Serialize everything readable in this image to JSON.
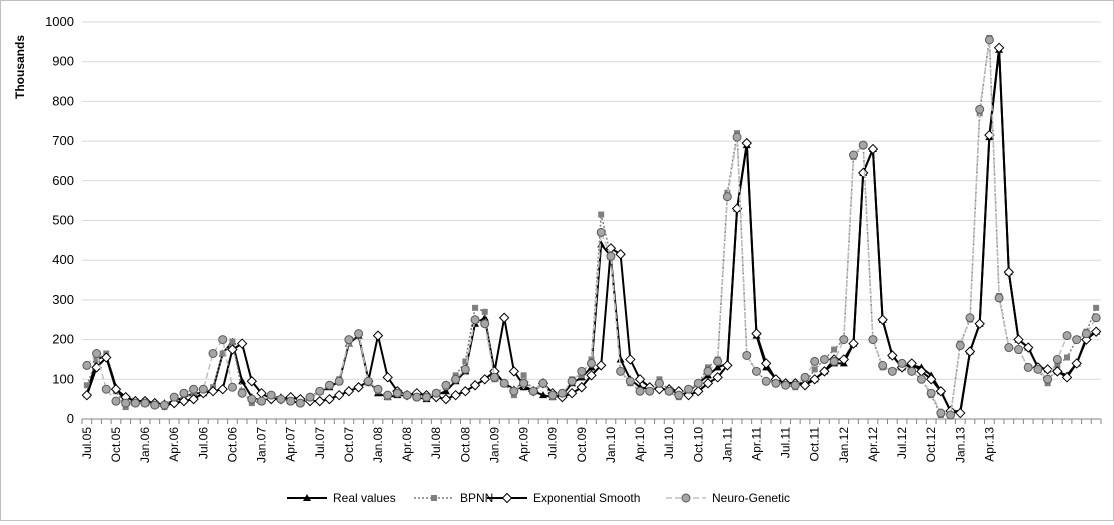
{
  "chart_data": {
    "type": "line",
    "title": "",
    "xlabel": "",
    "ylabel": "Thousands",
    "ylim": [
      0,
      1000
    ],
    "yticks": [
      0,
      100,
      200,
      300,
      400,
      500,
      600,
      700,
      800,
      900,
      1000
    ],
    "grid": "horizontal",
    "legend_position": "bottom",
    "x_start": "Jul.05",
    "x_tick_labels": [
      "Jul.05",
      "Oct.05",
      "Jan.06",
      "Apr.06",
      "Jul.06",
      "Oct.06",
      "Jan.07",
      "Apr.07",
      "Jul.07",
      "Oct.07",
      "Jan.08",
      "Apr.08",
      "Jul.08",
      "Oct.08",
      "Jan.09",
      "Apr.09",
      "Jul.09",
      "Oct.09",
      "Jan.10",
      "Apr.10",
      "Jul.10",
      "Oct.10",
      "Jan.11",
      "Apr.11",
      "Jul.11",
      "Oct.11",
      "Jan.12",
      "Apr.12",
      "Jul.12",
      "Oct.12",
      "Jan.13",
      "Apr.13"
    ],
    "series": [
      {
        "name": "Real values",
        "color": "#000000",
        "values": [
          62,
          150,
          160,
          80,
          40,
          40,
          40,
          35,
          40,
          45,
          55,
          65,
          65,
          75,
          165,
          195,
          95,
          55,
          45,
          55,
          55,
          45,
          40,
          55,
          70,
          80,
          95,
          190,
          210,
          100,
          65,
          55,
          60,
          60,
          55,
          50,
          60,
          70,
          95,
          120,
          240,
          255,
          120,
          90,
          75,
          80,
          70,
          60,
          55,
          60,
          90,
          105,
          130,
          440,
          410,
          150,
          100,
          80,
          75,
          80,
          70,
          65,
          70,
          90,
          110,
          130,
          140,
          530,
          690,
          210,
          130,
          100,
          90,
          90,
          90,
          100,
          120,
          140,
          140,
          190,
          620,
          680,
          250,
          160,
          130,
          135,
          130,
          110,
          70,
          20,
          20,
          170,
          240,
          710,
          930,
          370,
          200,
          180,
          130,
          125,
          120,
          110,
          140,
          205,
          220
        ]
      },
      {
        "name": "BPNN",
        "color": "#7f7f7f",
        "values": [
          85,
          150,
          165,
          70,
          30,
          45,
          45,
          35,
          30,
          45,
          55,
          65,
          65,
          80,
          165,
          195,
          70,
          40,
          45,
          60,
          50,
          45,
          45,
          50,
          70,
          85,
          100,
          190,
          215,
          90,
          70,
          55,
          65,
          60,
          55,
          55,
          65,
          80,
          110,
          145,
          280,
          270,
          100,
          90,
          60,
          110,
          70,
          90,
          55,
          60,
          100,
          110,
          150,
          515,
          410,
          120,
          90,
          70,
          70,
          100,
          70,
          55,
          70,
          90,
          130,
          150,
          570,
          720,
          160,
          120,
          95,
          95,
          85,
          80,
          90,
          125,
          150,
          175,
          200,
          660,
          690,
          200,
          130,
          120,
          130,
          120,
          100,
          60,
          10,
          10,
          190,
          250,
          770,
          960,
          310,
          180,
          175,
          130,
          125,
          90,
          135,
          155,
          200,
          220,
          280
        ]
      },
      {
        "name": "Exponential Smooth",
        "color": "#000000",
        "values": [
          60,
          130,
          155,
          75,
          55,
          45,
          45,
          40,
          35,
          40,
          45,
          50,
          65,
          70,
          75,
          175,
          190,
          95,
          65,
          50,
          50,
          55,
          50,
          45,
          45,
          50,
          60,
          70,
          80,
          95,
          210,
          105,
          70,
          60,
          65,
          60,
          55,
          50,
          60,
          70,
          85,
          100,
          120,
          255,
          120,
          85,
          70,
          90,
          65,
          55,
          65,
          80,
          110,
          135,
          430,
          415,
          150,
          100,
          80,
          75,
          75,
          70,
          60,
          70,
          90,
          105,
          135,
          530,
          695,
          215,
          140,
          100,
          90,
          90,
          85,
          100,
          120,
          150,
          150,
          190,
          620,
          680,
          250,
          160,
          130,
          140,
          120,
          100,
          70,
          20,
          15,
          170,
          240,
          715,
          935,
          370,
          200,
          180,
          130,
          125,
          120,
          105,
          140,
          200,
          220
        ]
      },
      {
        "name": "Neuro-Genetic",
        "color": "#a6a6a6",
        "values": [
          135,
          165,
          75,
          45,
          40,
          40,
          40,
          35,
          35,
          55,
          65,
          75,
          75,
          165,
          200,
          80,
          65,
          50,
          45,
          60,
          50,
          45,
          40,
          55,
          70,
          85,
          95,
          200,
          215,
          95,
          75,
          60,
          65,
          60,
          55,
          55,
          65,
          85,
          100,
          125,
          250,
          240,
          105,
          90,
          70,
          90,
          70,
          90,
          60,
          65,
          95,
          120,
          140,
          470,
          410,
          120,
          95,
          70,
          70,
          90,
          70,
          60,
          75,
          90,
          120,
          145,
          560,
          710,
          160,
          120,
          95,
          90,
          85,
          85,
          105,
          145,
          150,
          145,
          200,
          665,
          690,
          200,
          135,
          120,
          140,
          120,
          100,
          65,
          15,
          10,
          185,
          255,
          780,
          955,
          305,
          180,
          175,
          130,
          125,
          100,
          150,
          210,
          200,
          215,
          255
        ]
      }
    ]
  }
}
